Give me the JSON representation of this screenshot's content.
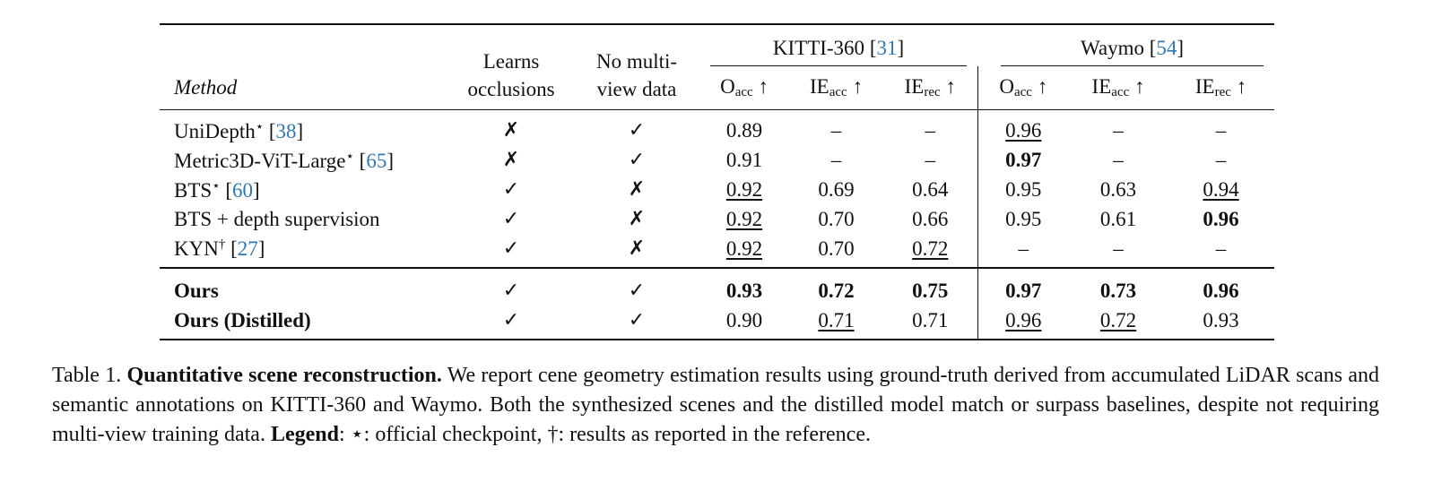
{
  "table": {
    "headers": {
      "method": "Method",
      "learns_occlusions": [
        "Learns",
        "occlusions"
      ],
      "no_multiview": [
        "No multi-",
        "view data"
      ],
      "groups": [
        {
          "name": "KITTI-360",
          "ref": "31"
        },
        {
          "name": "Waymo",
          "ref": "54"
        }
      ],
      "metrics": [
        {
          "base": "O",
          "sub": "acc",
          "arrow": "↑"
        },
        {
          "base": "IE",
          "sub": "acc",
          "arrow": "↑"
        },
        {
          "base": "IE",
          "sub": "rec",
          "arrow": "↑"
        },
        {
          "base": "O",
          "sub": "acc",
          "arrow": "↑"
        },
        {
          "base": "IE",
          "sub": "acc",
          "arrow": "↑"
        },
        {
          "base": "IE",
          "sub": "rec",
          "arrow": "↑"
        }
      ]
    },
    "rows": [
      {
        "name": "UniDepth",
        "sup": "⋆",
        "ref": "38",
        "occl": "✗",
        "multiview": "✓",
        "k_oacc": "0.89",
        "k_ieacc": "–",
        "k_ierec": "–",
        "w_oacc": "0.96",
        "w_ieacc": "–",
        "w_ierec": "–"
      },
      {
        "name": "Metric3D-ViT-Large",
        "sup": "⋆",
        "ref": "65",
        "occl": "✗",
        "multiview": "✓",
        "k_oacc": "0.91",
        "k_ieacc": "–",
        "k_ierec": "–",
        "w_oacc": "0.97",
        "w_ieacc": "–",
        "w_ierec": "–"
      },
      {
        "name": "BTS",
        "sup": "⋆",
        "ref": "60",
        "occl": "✓",
        "multiview": "✗",
        "k_oacc": "0.92",
        "k_ieacc": "0.69",
        "k_ierec": "0.64",
        "w_oacc": "0.95",
        "w_ieacc": "0.63",
        "w_ierec": "0.94"
      },
      {
        "name": "BTS + depth supervision",
        "sup": "",
        "ref": "",
        "occl": "✓",
        "multiview": "✗",
        "k_oacc": "0.92",
        "k_ieacc": "0.70",
        "k_ierec": "0.66",
        "w_oacc": "0.95",
        "w_ieacc": "0.61",
        "w_ierec": "0.96"
      },
      {
        "name": "KYN",
        "sup": "†",
        "ref": "27",
        "occl": "✓",
        "multiview": "✗",
        "k_oacc": "0.92",
        "k_ieacc": "0.70",
        "k_ierec": "0.72",
        "w_oacc": "–",
        "w_ieacc": "–",
        "w_ierec": "–"
      },
      {
        "name": "Ours",
        "sup": "",
        "ref": "",
        "occl": "✓",
        "multiview": "✓",
        "k_oacc": "0.93",
        "k_ieacc": "0.72",
        "k_ierec": "0.75",
        "w_oacc": "0.97",
        "w_ieacc": "0.73",
        "w_ierec": "0.96"
      },
      {
        "name": "Ours (Distilled)",
        "sup": "",
        "ref": "",
        "occl": "✓",
        "multiview": "✓",
        "k_oacc": "0.90",
        "k_ieacc": "0.71",
        "k_ierec": "0.71",
        "w_oacc": "0.96",
        "w_ieacc": "0.72",
        "w_ierec": "0.93"
      }
    ]
  },
  "caption": {
    "label": "Table 1.",
    "title": "Quantitative scene reconstruction.",
    "body": "We report cene geometry estimation results using ground-truth derived from accumulated LiDAR scans and semantic annotations on KITTI-360 and Waymo. Both the synthesized scenes and the distilled model match or surpass baselines, despite not requiring multi-view training data.",
    "legend_label": "Legend",
    "legend_text": ": ⋆: official checkpoint, †: results as reported in the reference."
  },
  "colors": {
    "text": "#111111",
    "citation": "#2e78b5"
  }
}
